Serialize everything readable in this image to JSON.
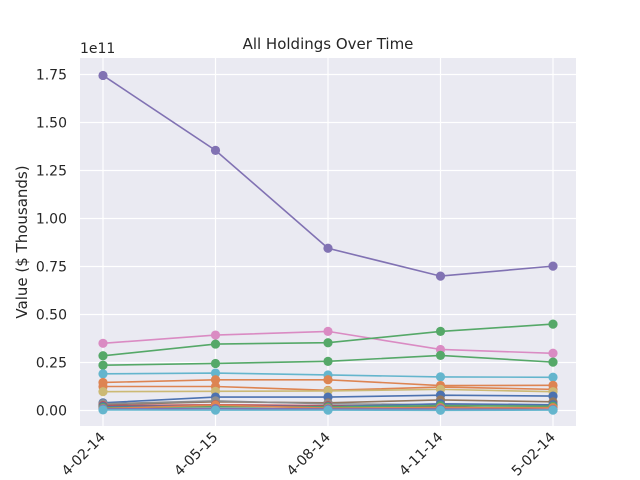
{
  "chart_data": {
    "type": "line",
    "title": "All Holdings Over Time",
    "xlabel": "",
    "ylabel": "Value ($ Thousands)",
    "y_scale_label": "1e11",
    "x": [
      "2014-02-14",
      "2014-05-15",
      "2014-08-14",
      "2014-11-14",
      "2015-02-14"
    ],
    "x_tick_labels": [
      "4-02-14",
      "4-05-15",
      "4-08-14",
      "4-11-14",
      "5-02-14"
    ],
    "y_tick_values": [
      0.0,
      0.25,
      0.5,
      0.75,
      1.0,
      1.25,
      1.5,
      1.75
    ],
    "y_tick_labels": [
      "0.00",
      "0.25",
      "0.50",
      "0.75",
      "1.00",
      "1.25",
      "1.50",
      "1.75"
    ],
    "ylim": [
      -0.085,
      1.82
    ],
    "grid": true,
    "background": "#eaeaf2",
    "series": [
      {
        "color": "#8172b3",
        "values": [
          1.745,
          1.355,
          0.845,
          0.7,
          0.752
        ]
      },
      {
        "color": "#da8bc3",
        "values": [
          0.35,
          0.393,
          0.412,
          0.318,
          0.298
        ]
      },
      {
        "color": "#55a868",
        "values": [
          0.285,
          0.346,
          0.353,
          0.412,
          0.45
        ]
      },
      {
        "color": "#55a868",
        "values": [
          0.236,
          0.245,
          0.256,
          0.287,
          0.252
        ]
      },
      {
        "color": "#64b5cd",
        "values": [
          0.191,
          0.195,
          0.185,
          0.175,
          0.173
        ]
      },
      {
        "color": "#dd8452",
        "values": [
          0.146,
          0.16,
          0.16,
          0.13,
          0.131
        ]
      },
      {
        "color": "#dd8452",
        "values": [
          0.125,
          0.125,
          0.105,
          0.122,
          0.11
        ]
      },
      {
        "color": "#ccb974",
        "values": [
          0.098,
          0.1,
          0.102,
          0.11,
          0.098
        ]
      },
      {
        "color": "#4c72b0",
        "values": [
          0.04,
          0.07,
          0.07,
          0.08,
          0.075
        ]
      },
      {
        "color": "#937860",
        "values": [
          0.03,
          0.045,
          0.04,
          0.055,
          0.045
        ]
      },
      {
        "color": "#8c8c8c",
        "values": [
          0.035,
          0.05,
          0.035,
          0.03,
          0.025
        ]
      },
      {
        "color": "#c44e52",
        "values": [
          0.025,
          0.03,
          0.025,
          0.02,
          0.005
        ]
      },
      {
        "color": "#4c72b0",
        "values": [
          0.02,
          0.025,
          0.02,
          0.035,
          0.03
        ]
      },
      {
        "color": "#55a868",
        "values": [
          0.015,
          0.02,
          0.018,
          0.025,
          0.022
        ]
      },
      {
        "color": "#dd8452",
        "values": [
          0.01,
          0.028,
          0.012,
          0.015,
          0.015
        ]
      },
      {
        "color": "#8172b3",
        "values": [
          0.008,
          0.01,
          0.008,
          0.008,
          0.005
        ]
      },
      {
        "color": "#64b5cd",
        "values": [
          0.003,
          0.002,
          0.002,
          0.001,
          0.002
        ]
      }
    ]
  }
}
